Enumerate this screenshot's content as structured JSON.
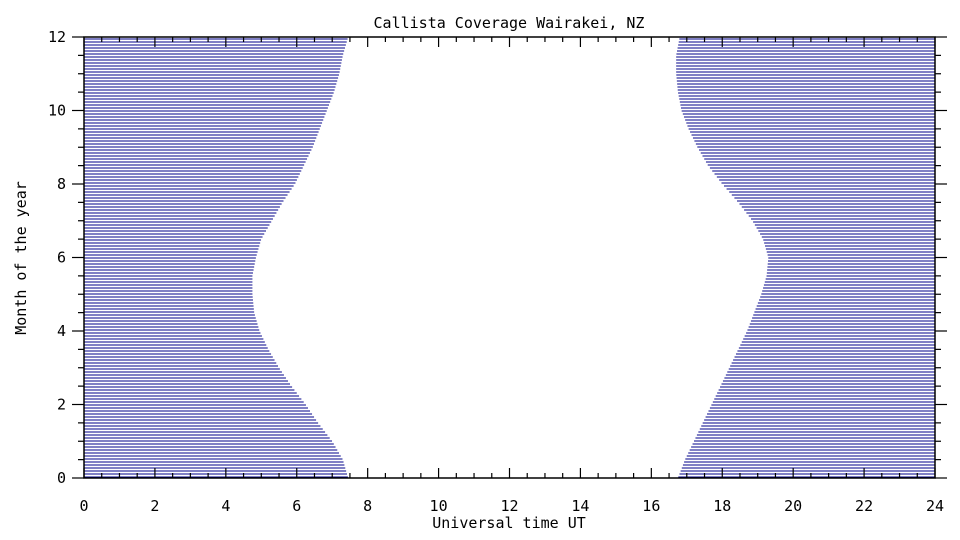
{
  "chart_data": {
    "type": "area",
    "title": "Callista Coverage Wairakei, NZ",
    "xlabel": "Universal time UT",
    "ylabel": "Month of the year",
    "xlim": [
      0,
      24
    ],
    "ylim": [
      0,
      12
    ],
    "x_ticks": [
      "0",
      "2",
      "4",
      "6",
      "8",
      "10",
      "12",
      "14",
      "16",
      "18",
      "20",
      "22",
      "24"
    ],
    "y_ticks": [
      "0",
      "2",
      "4",
      "6",
      "8",
      "10",
      "12"
    ],
    "fill_color": "#00008b",
    "fill_style": "horizontal hatch lines",
    "series": [
      {
        "region": "left",
        "description": "covered from 0 UT to boundary",
        "month": [
          0,
          0.5,
          1,
          1.5,
          2,
          2.5,
          3,
          3.5,
          4,
          4.5,
          5,
          5.5,
          6,
          6.5,
          7,
          7.5,
          8,
          8.5,
          9,
          9.5,
          10,
          10.5,
          11,
          11.5,
          12
        ],
        "end_ut": [
          7.45,
          7.3,
          7.0,
          6.6,
          6.25,
          5.85,
          5.5,
          5.2,
          4.95,
          4.8,
          4.75,
          4.75,
          4.85,
          5.0,
          5.3,
          5.6,
          5.95,
          6.2,
          6.45,
          6.65,
          6.85,
          7.05,
          7.2,
          7.3,
          7.45
        ]
      },
      {
        "region": "right",
        "description": "covered from boundary to 24 UT",
        "month": [
          0,
          0.5,
          1,
          1.5,
          2,
          2.5,
          3,
          3.5,
          4,
          4.5,
          5,
          5.5,
          6,
          6.5,
          7,
          7.5,
          8,
          8.5,
          9,
          9.5,
          10,
          10.5,
          11,
          11.5,
          12
        ],
        "start_ut": [
          16.75,
          16.95,
          17.2,
          17.45,
          17.7,
          17.95,
          18.2,
          18.45,
          18.7,
          18.9,
          19.1,
          19.25,
          19.3,
          19.15,
          18.85,
          18.45,
          18.0,
          17.6,
          17.3,
          17.05,
          16.85,
          16.75,
          16.7,
          16.7,
          16.8
        ]
      }
    ]
  }
}
